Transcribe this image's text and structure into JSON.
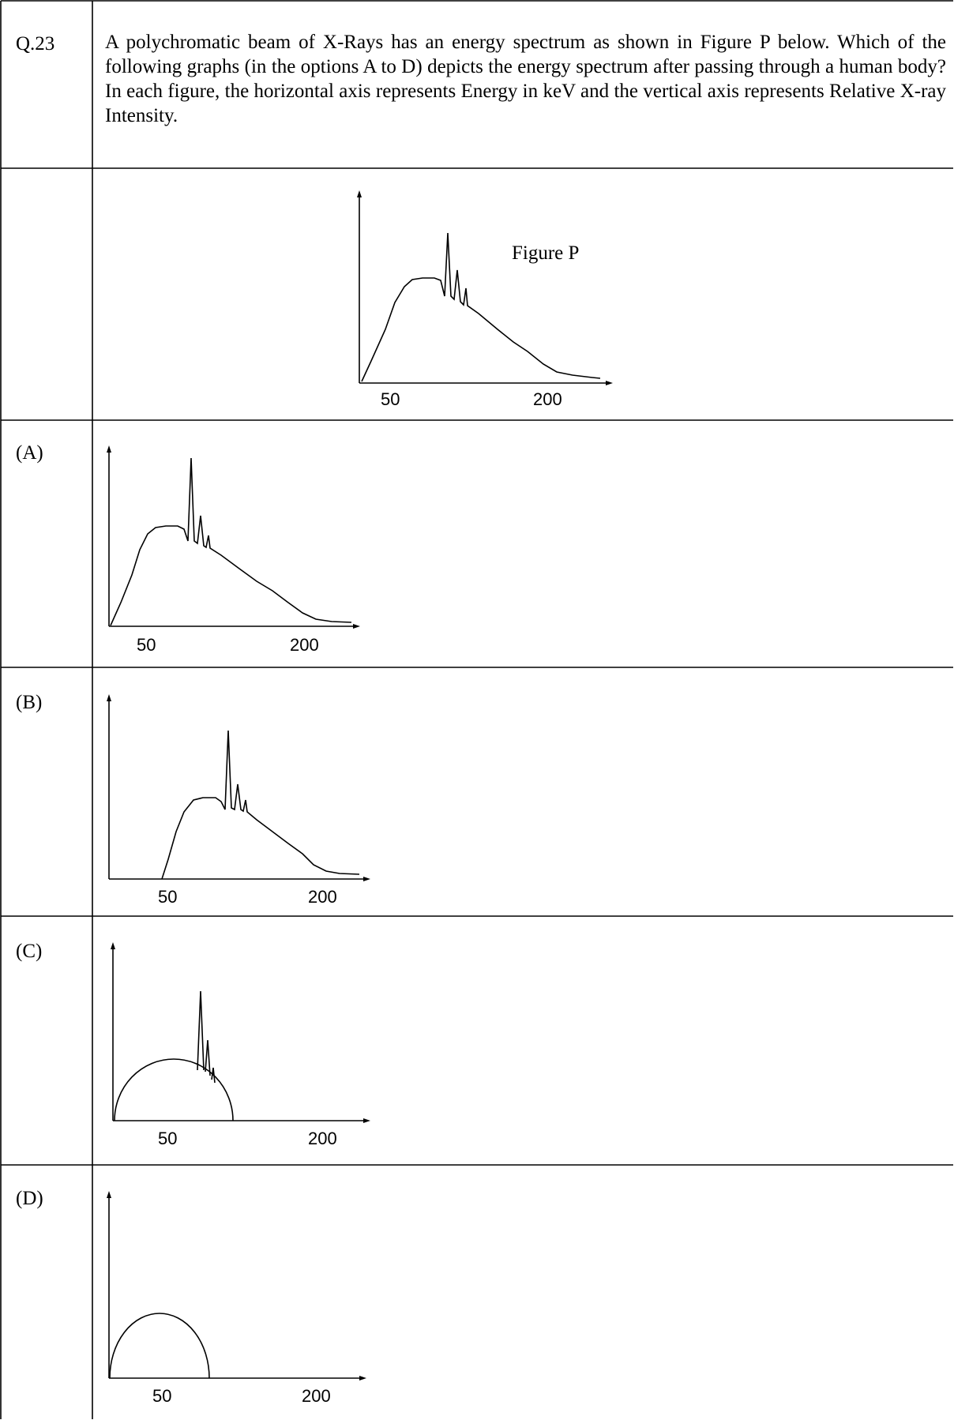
{
  "question": {
    "number": "Q.23",
    "text": "A polychromatic beam of X-Rays has an energy spectrum as shown in Figure P below. Which of the following graphs (in the options A to D) depicts the energy spectrum after passing through a human body? In each figure, the horizontal axis represents Energy in keV and the vertical axis represents Relative X-ray Intensity."
  },
  "figure_p": {
    "title": "Figure P",
    "x_tick_1": "50",
    "x_tick_2": "200"
  },
  "options": {
    "a": {
      "label": "(A)",
      "x_tick_1": "50",
      "x_tick_2": "200"
    },
    "b": {
      "label": "(B)",
      "x_tick_1": "50",
      "x_tick_2": "200"
    },
    "c": {
      "label": "(C)",
      "x_tick_1": "50",
      "x_tick_2": "200"
    },
    "d": {
      "label": "(D)",
      "x_tick_1": "50",
      "x_tick_2": "200"
    }
  }
}
